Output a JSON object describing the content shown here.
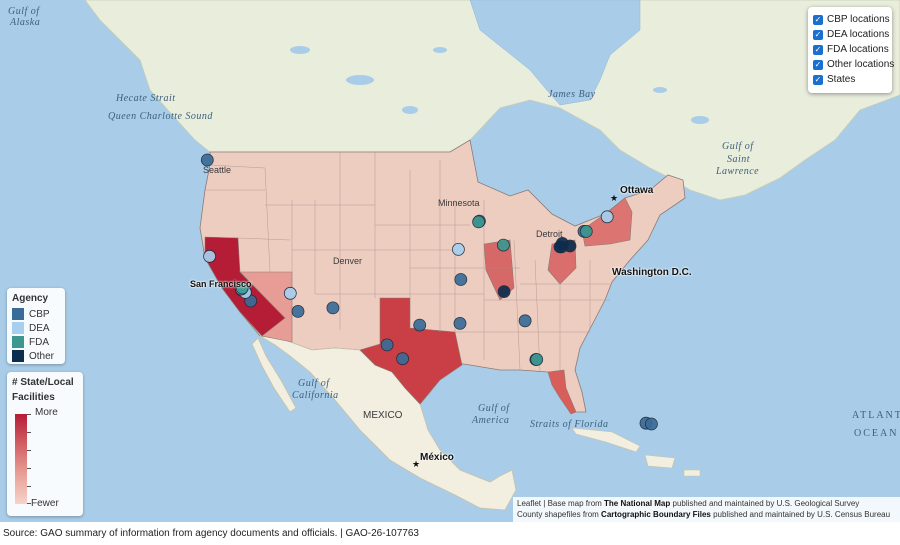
{
  "map": {
    "water_labels": [
      {
        "text": "Gulf of",
        "name": "gulf-of-alaska-line1"
      },
      {
        "text": "Alaska",
        "name": "gulf-of-alaska-line2"
      },
      {
        "text": "Hecate Strait",
        "name": "hecate-strait"
      },
      {
        "text": "Queen Charlotte Sound",
        "name": "queen-charlotte-sound"
      },
      {
        "text": "James Bay",
        "name": "james-bay"
      },
      {
        "text": "Gulf of",
        "name": "gulf-of-st-lawrence-line1"
      },
      {
        "text": "Saint",
        "name": "gulf-of-st-lawrence-line2"
      },
      {
        "text": "Lawrence",
        "name": "gulf-of-st-lawrence-line3"
      },
      {
        "text": "Gulf of",
        "name": "gulf-of-california-line1"
      },
      {
        "text": "California",
        "name": "gulf-of-california-line2"
      },
      {
        "text": "Gulf of",
        "name": "gulf-of-america-line1"
      },
      {
        "text": "America",
        "name": "gulf-of-america-line2"
      },
      {
        "text": "Straits of Florida",
        "name": "straits-of-florida"
      },
      {
        "text": "ATLANTIC",
        "name": "atlantic-ocean-line1"
      },
      {
        "text": "OCEAN",
        "name": "atlantic-ocean-line2"
      }
    ],
    "land_labels": [
      {
        "text": "Minnesota",
        "name": "label-minnesota"
      },
      {
        "text": "Denver",
        "name": "label-denver"
      },
      {
        "text": "MEXICO",
        "name": "label-mexico"
      },
      {
        "text": "Seattle",
        "name": "label-seattle"
      },
      {
        "text": "Detroit",
        "name": "label-detroit"
      }
    ],
    "city_labels": [
      {
        "text": "Ottawa",
        "name": "label-ottawa"
      },
      {
        "text": "San Francisco",
        "name": "label-san-francisco"
      },
      {
        "text": "Washington D.C.",
        "name": "label-washington-dc"
      },
      {
        "text": "México",
        "name": "label-mexico-city"
      }
    ],
    "points_note": "",
    "points": [
      {
        "agency": "CBP",
        "lon": -122.7,
        "lat": 49.0
      },
      {
        "agency": "CBP",
        "lon": -118.3,
        "lat": 33.9
      },
      {
        "agency": "CBP",
        "lon": -117.1,
        "lat": 32.6
      },
      {
        "agency": "CBP",
        "lon": -111.0,
        "lat": 31.4
      },
      {
        "agency": "CBP",
        "lon": -106.5,
        "lat": 31.8
      },
      {
        "agency": "CBP",
        "lon": -99.5,
        "lat": 27.5
      },
      {
        "agency": "CBP",
        "lon": -97.5,
        "lat": 25.9
      },
      {
        "agency": "CBP",
        "lon": -95.3,
        "lat": 29.8
      },
      {
        "agency": "CBP",
        "lon": -90.1,
        "lat": 30.0
      },
      {
        "agency": "CBP",
        "lon": -87.6,
        "lat": 41.9
      },
      {
        "agency": "CBP",
        "lon": -80.3,
        "lat": 25.8
      },
      {
        "agency": "CBP",
        "lon": -81.7,
        "lat": 30.3
      },
      {
        "agency": "CBP",
        "lon": -77.0,
        "lat": 38.9
      },
      {
        "agency": "CBP",
        "lon": -74.1,
        "lat": 40.7
      },
      {
        "agency": "CBP",
        "lon": -66.1,
        "lat": 18.4
      },
      {
        "agency": "CBP",
        "lon": -65.4,
        "lat": 18.3
      },
      {
        "agency": "CBP",
        "lon": -90.0,
        "lat": 35.1
      },
      {
        "agency": "CBP",
        "lon": -117.8,
        "lat": 33.7
      },
      {
        "agency": "DEA",
        "lon": -122.4,
        "lat": 37.8
      },
      {
        "agency": "DEA",
        "lon": -117.8,
        "lat": 33.6
      },
      {
        "agency": "DEA",
        "lon": -112.0,
        "lat": 33.5
      },
      {
        "agency": "DEA",
        "lon": -90.3,
        "lat": 38.6
      },
      {
        "agency": "DEA",
        "lon": -71.1,
        "lat": 42.4
      },
      {
        "agency": "DEA",
        "lon": -118.3,
        "lat": 34.0
      },
      {
        "agency": "FDA",
        "lon": -118.2,
        "lat": 34.1
      },
      {
        "agency": "FDA",
        "lon": -87.7,
        "lat": 41.8
      },
      {
        "agency": "FDA",
        "lon": -84.5,
        "lat": 39.1
      },
      {
        "agency": "FDA",
        "lon": -73.8,
        "lat": 40.7
      },
      {
        "agency": "FDA",
        "lon": -80.2,
        "lat": 25.8
      },
      {
        "agency": "Other",
        "lon": -76.9,
        "lat": 39.3
      },
      {
        "agency": "Other",
        "lon": -77.2,
        "lat": 38.9
      },
      {
        "agency": "Other",
        "lon": -75.9,
        "lat": 39.0
      },
      {
        "agency": "Other",
        "lon": -84.4,
        "lat": 33.7
      }
    ]
  },
  "layers": {
    "items": [
      {
        "label": "CBP locations",
        "name": "layer-toggle-cbp"
      },
      {
        "label": "DEA locations",
        "name": "layer-toggle-dea"
      },
      {
        "label": "FDA locations",
        "name": "layer-toggle-fda"
      },
      {
        "label": "Other locations",
        "name": "layer-toggle-other"
      },
      {
        "label": "States",
        "name": "layer-toggle-states"
      }
    ],
    "checked_glyph": "✓"
  },
  "agency_legend": {
    "title": "Agency",
    "items": [
      {
        "label": "CBP",
        "color": "#3b6c97"
      },
      {
        "label": "DEA",
        "color": "#a8cfee"
      },
      {
        "label": "FDA",
        "color": "#3d978f"
      },
      {
        "label": "Other",
        "color": "#0c2d4f"
      }
    ]
  },
  "facilities_legend": {
    "title_line1": "# State/Local",
    "title_line2": "Facilities",
    "more": "More",
    "fewer": "Fewer",
    "color_high": "#b51c36",
    "color_low": "#f6d3ca"
  },
  "attribution": {
    "leaflet": "Leaflet",
    "sep": " | ",
    "base_prefix": "Base map from ",
    "base_name": "The National Map",
    "base_suffix": " published and maintained by U.S. Geological Survey",
    "county_prefix": "County shapefiles from ",
    "county_name": "Cartographic Boundary Files",
    "county_suffix": " published and maintained by U.S. Census Bureau"
  },
  "source": "Source: GAO summary of information from agency documents and officials.  |  GAO-26-107763"
}
